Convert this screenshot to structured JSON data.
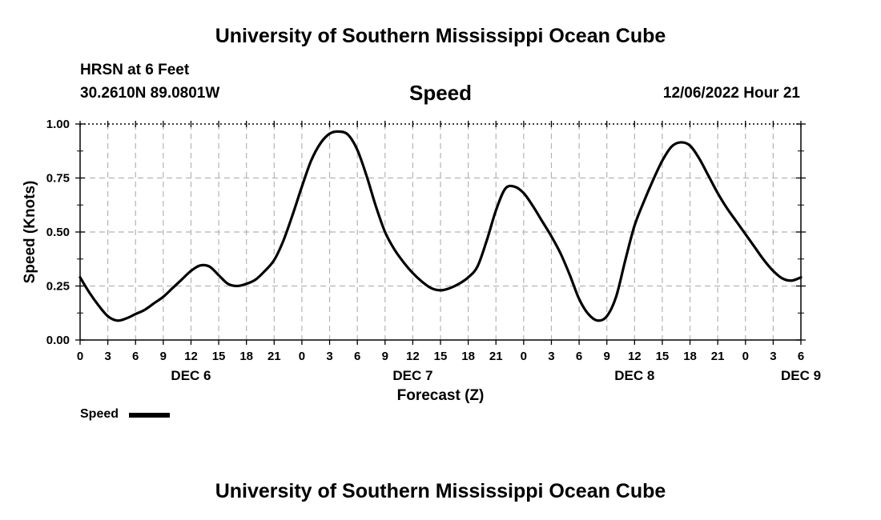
{
  "header": {
    "title_top": "University of Southern Mississippi Ocean Cube",
    "station": "HRSN at 6 Feet",
    "coordinates": "30.2610N  89.0801W",
    "chart_title": "Speed",
    "datetime": "12/06/2022 Hour 21",
    "title_bottom": "University of Southern Mississippi Ocean Cube"
  },
  "legend": {
    "label": "Speed",
    "color": "#000000"
  },
  "chart_data": {
    "type": "line",
    "title": "Speed",
    "xlabel": "Forecast (Z)",
    "ylabel": "Speed (Knots)",
    "x_range_hours": [
      0,
      78
    ],
    "xlim": [
      "12/06 00Z",
      "12/09 06Z"
    ],
    "ylim": [
      0,
      1
    ],
    "grid": true,
    "x_tick_labels": [
      "0",
      "3",
      "6",
      "9",
      "12",
      "15",
      "18",
      "21",
      "0",
      "3",
      "6",
      "9",
      "12",
      "15",
      "18",
      "21",
      "0",
      "3",
      "6",
      "9",
      "12",
      "15",
      "18",
      "21",
      "0",
      "3",
      "6"
    ],
    "y_tick_labels": [
      "0.00",
      "0.25",
      "0.50",
      "0.75",
      "1.00"
    ],
    "day_labels": [
      {
        "label": "DEC 6",
        "hour": 12
      },
      {
        "label": "DEC 7",
        "hour": 36
      },
      {
        "label": "DEC 8",
        "hour": 60
      },
      {
        "label": "DEC 9",
        "hour": 78
      }
    ],
    "series": [
      {
        "name": "Speed",
        "color": "#000000",
        "x": [
          0,
          1,
          2,
          3,
          4,
          5,
          6,
          7,
          8,
          9,
          10,
          11,
          12,
          13,
          14,
          15,
          16,
          17,
          18,
          19,
          20,
          21,
          22,
          23,
          24,
          25,
          26,
          27,
          28,
          29,
          30,
          31,
          32,
          33,
          34,
          35,
          36,
          37,
          38,
          39,
          40,
          41,
          42,
          43,
          44,
          45,
          46,
          47,
          48,
          49,
          50,
          51,
          52,
          53,
          54,
          55,
          56,
          57,
          58,
          59,
          60,
          61,
          62,
          63,
          64,
          65,
          66,
          67,
          68,
          69,
          70,
          71,
          72,
          73,
          74,
          75,
          76,
          77,
          78
        ],
        "values": [
          0.29,
          0.22,
          0.16,
          0.11,
          0.09,
          0.1,
          0.12,
          0.14,
          0.17,
          0.2,
          0.24,
          0.28,
          0.32,
          0.345,
          0.34,
          0.3,
          0.26,
          0.25,
          0.26,
          0.28,
          0.32,
          0.37,
          0.46,
          0.58,
          0.71,
          0.83,
          0.91,
          0.955,
          0.965,
          0.95,
          0.88,
          0.76,
          0.62,
          0.5,
          0.42,
          0.36,
          0.31,
          0.27,
          0.24,
          0.23,
          0.24,
          0.26,
          0.29,
          0.34,
          0.46,
          0.6,
          0.7,
          0.71,
          0.68,
          0.62,
          0.55,
          0.48,
          0.4,
          0.3,
          0.19,
          0.12,
          0.09,
          0.11,
          0.2,
          0.37,
          0.53,
          0.64,
          0.74,
          0.83,
          0.895,
          0.915,
          0.9,
          0.84,
          0.76,
          0.68,
          0.61,
          0.55,
          0.49,
          0.43,
          0.37,
          0.32,
          0.285,
          0.275,
          0.29
        ]
      }
    ]
  }
}
